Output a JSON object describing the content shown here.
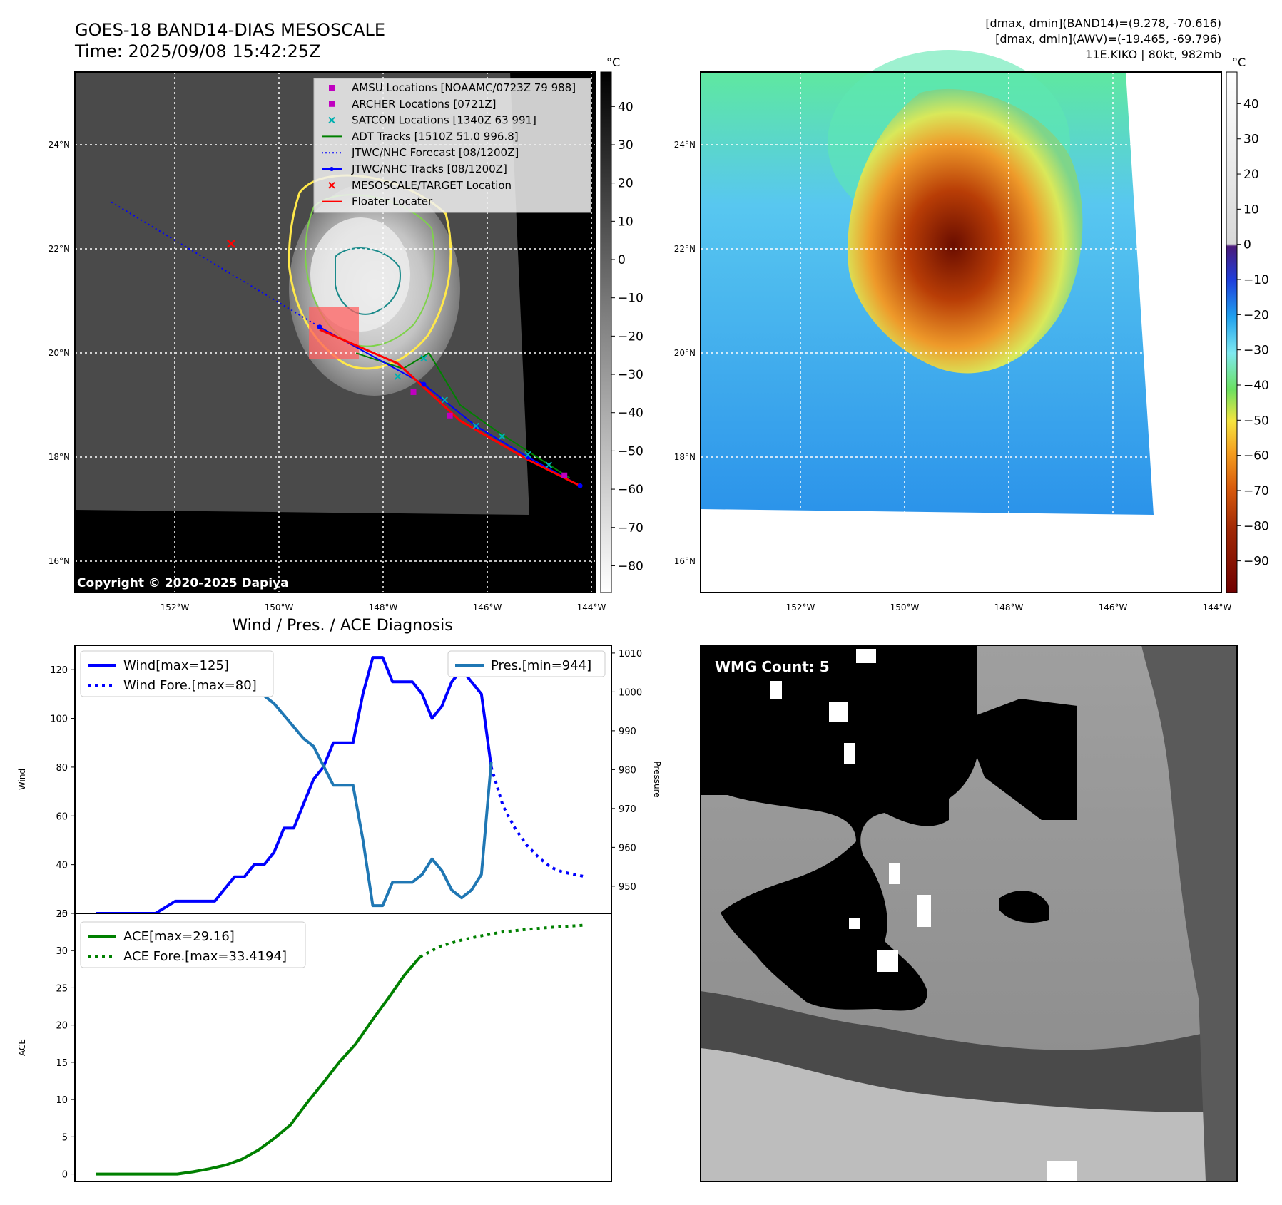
{
  "header": {
    "title_line1": "GOES-18 BAND14-DIAS MESOSCALE",
    "title_line2": "Time: 2025/09/08 15:42:25Z",
    "info_line1": "[dmax, dmin](BAND14)=(9.278, -70.616)",
    "info_line2": "[dmax, dmin](AWV)=(-19.465, -69.796)",
    "info_line3": "11E.KIKO | 80kt, 982mb"
  },
  "colors": {
    "wind": "#0000ff",
    "pressure": "#1f77b4",
    "ace": "#008000",
    "adt": "#008000",
    "floater": "#ff0000",
    "amsu": "#c000c0",
    "satcon": "#00b0b0",
    "jtwc": "#0000ff"
  },
  "map": {
    "lon_labels": [
      "152°W",
      "150°W",
      "148°W",
      "146°W",
      "144°W"
    ],
    "lat_labels": [
      "24°N",
      "22°N",
      "20°N",
      "18°N",
      "16°N"
    ],
    "copyright": "Copyright © 2020-2025 Dapiya",
    "colorbar_unit": "°C",
    "bt_colorbar_ticks": [
      "40",
      "30",
      "20",
      "10",
      "0",
      "−10",
      "−20",
      "−30",
      "−40",
      "−50",
      "−60",
      "−70",
      "−80"
    ],
    "dias_colorbar_ticks": [
      "40",
      "30",
      "20",
      "10",
      "0",
      "−10",
      "−20",
      "−30",
      "−40",
      "−50",
      "−60",
      "−70",
      "−80",
      "−90"
    ],
    "legend": [
      {
        "label": "AMSU Locations [NOAAMC/0723Z 79 988]",
        "marker": "square",
        "color": "#c000c0"
      },
      {
        "label": "ARCHER Locations [0721Z]",
        "marker": "square",
        "color": "#c000c0"
      },
      {
        "label": "SATCON Locations [1340Z 63 991]",
        "marker": "x",
        "color": "#00b0b0"
      },
      {
        "label": "ADT Tracks [1510Z 51.0 996.8]",
        "marker": "line",
        "color": "#008000"
      },
      {
        "label": "JTWC/NHC Forecast [08/1200Z]",
        "marker": "dotted",
        "color": "#0000ff"
      },
      {
        "label": "JTWC/NHC Tracks [08/1200Z]",
        "marker": "line-dot",
        "color": "#0000ff"
      },
      {
        "label": "MESOSCALE/TARGET Location",
        "marker": "x",
        "color": "#ff0000"
      },
      {
        "label": "Floater Locater",
        "marker": "line",
        "color": "#ff0000"
      }
    ],
    "jtwc_forecast_track": [
      [
        -153.0,
        22.8
      ],
      [
        -149.0,
        20.4
      ]
    ],
    "jtwc_track": [
      [
        -149.0,
        20.4
      ],
      [
        -147.0,
        19.3
      ],
      [
        -146.0,
        18.5
      ],
      [
        -145.0,
        17.9
      ],
      [
        -144.0,
        17.35
      ]
    ],
    "floater_track": [
      [
        -149.0,
        20.35
      ],
      [
        -147.5,
        19.7
      ],
      [
        -146.3,
        18.6
      ],
      [
        -145.0,
        17.85
      ],
      [
        -144.0,
        17.35
      ]
    ],
    "target_location": [
      -150.7,
      22.0
    ],
    "amsu_locations": [
      [
        -147.2,
        19.15
      ],
      [
        -146.5,
        18.7
      ],
      [
        -144.3,
        17.55
      ]
    ],
    "satcon_locations": [
      [
        -147.5,
        19.45
      ],
      [
        -147.0,
        19.8
      ],
      [
        -146.6,
        19.0
      ],
      [
        -146.0,
        18.5
      ],
      [
        -145.5,
        18.3
      ],
      [
        -145.0,
        17.95
      ],
      [
        -144.6,
        17.75
      ]
    ],
    "adt_track": [
      [
        -148.3,
        19.9
      ],
      [
        -147.4,
        19.6
      ],
      [
        -146.9,
        19.9
      ],
      [
        -146.3,
        18.9
      ],
      [
        -145.6,
        18.4
      ],
      [
        -144.9,
        17.95
      ],
      [
        -144.2,
        17.5
      ]
    ]
  },
  "wmg_panel": {
    "label": "WMG Count: 5"
  },
  "chart_data": [
    {
      "type": "line",
      "title": "Wind / Pres. / ACE Diagnosis",
      "ylabel": "Wind",
      "y2label": "Pressure",
      "ylim": [
        20,
        130
      ],
      "y2lim": [
        943,
        1012
      ],
      "yticks": [
        20,
        40,
        60,
        80,
        100,
        120
      ],
      "y2ticks": [
        950,
        960,
        970,
        980,
        990,
        1000,
        1010
      ],
      "xlim": [
        0,
        80
      ],
      "series": [
        {
          "name": "Wind[max=125]",
          "axis": "left",
          "style": "solid",
          "color": "#0000ff",
          "x": [
            0,
            6,
            12,
            16,
            20,
            24,
            26,
            28,
            30,
            32,
            34,
            36,
            38,
            40,
            42,
            44,
            46,
            48,
            50,
            52,
            54,
            56,
            58,
            60,
            62,
            64,
            66,
            68,
            70,
            72,
            74,
            76,
            78,
            80
          ],
          "y": [
            20,
            20,
            20,
            25,
            25,
            25,
            30,
            35,
            35,
            40,
            40,
            45,
            55,
            55,
            65,
            75,
            80,
            90,
            90,
            90,
            110,
            125,
            125,
            115,
            115,
            115,
            110,
            100,
            105,
            115,
            120,
            115,
            110,
            80
          ]
        },
        {
          "name": "Wind Fore.[max=80]",
          "axis": "left",
          "style": "dotted",
          "color": "#0000ff",
          "x": [
            0,
            4,
            8,
            12,
            16,
            20,
            24,
            28,
            32
          ],
          "y": [
            80,
            64,
            55,
            48,
            43,
            39,
            37,
            36,
            35
          ]
        },
        {
          "name": "Pres.[min=944]",
          "axis": "right",
          "style": "solid",
          "color": "#1f77b4",
          "x": [
            0,
            6,
            12,
            16,
            20,
            24,
            26,
            28,
            30,
            32,
            34,
            36,
            38,
            40,
            42,
            44,
            46,
            48,
            50,
            52,
            54,
            56,
            58,
            60,
            62,
            64,
            66,
            68,
            70,
            72,
            74,
            76,
            78,
            80
          ],
          "y": [
            1010,
            1010,
            1010,
            1009,
            1008,
            1007,
            1006,
            1004,
            1002,
            1000,
            999,
            997,
            994,
            991,
            988,
            986,
            981,
            976,
            976,
            976,
            962,
            945,
            945,
            951,
            951,
            951,
            953,
            957,
            954,
            949,
            947,
            949,
            953,
            982
          ]
        }
      ],
      "legend": [
        "Wind[max=125]",
        "Wind Fore.[max=80]",
        "Pres.[min=944]"
      ]
    },
    {
      "type": "line",
      "ylabel": "ACE",
      "ylim": [
        -1,
        35
      ],
      "yticks": [
        0,
        5,
        10,
        15,
        20,
        25,
        30,
        35
      ],
      "xlim": [
        0,
        80
      ],
      "series": [
        {
          "name": "ACE[max=29.16]",
          "style": "solid",
          "color": "#008000",
          "x": [
            0,
            10,
            20,
            24,
            28,
            32,
            36,
            40,
            44,
            48,
            52,
            56,
            60,
            64,
            68,
            72,
            76,
            80
          ],
          "y": [
            0,
            0,
            0,
            0.3,
            0.7,
            1.2,
            2,
            3.2,
            4.8,
            6.6,
            9.5,
            12.2,
            15,
            17.4,
            20.5,
            23.5,
            26.6,
            29.16
          ]
        },
        {
          "name": "ACE Fore.[max=33.4194]",
          "style": "dotted",
          "color": "#008000",
          "x": [
            0,
            6,
            12,
            18,
            24,
            30,
            36,
            42,
            48
          ],
          "y": [
            29.16,
            30.6,
            31.4,
            32.0,
            32.5,
            32.8,
            33.05,
            33.25,
            33.42
          ]
        }
      ],
      "legend": [
        "ACE[max=29.16]",
        "ACE Fore.[max=33.4194]"
      ]
    }
  ]
}
